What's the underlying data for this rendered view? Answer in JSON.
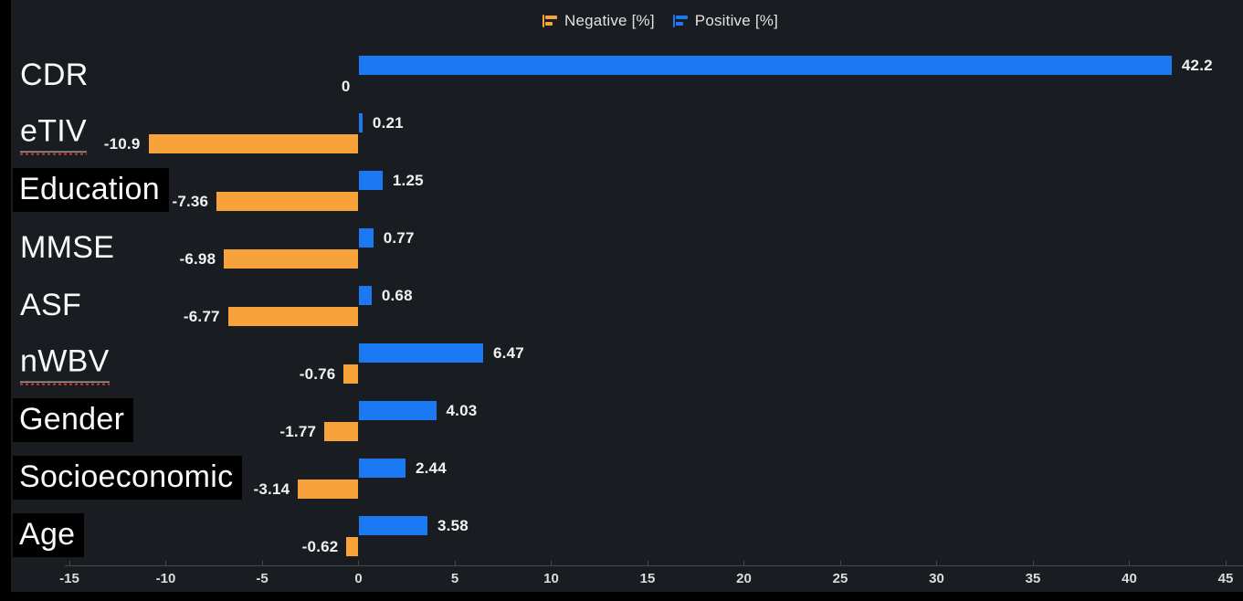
{
  "page": {
    "background": "#191c20",
    "frame_color": "#000000"
  },
  "legend": {
    "items": [
      {
        "label": "Negative [%]",
        "color": "#f7a23a"
      },
      {
        "label": "Positive [%]",
        "color": "#1b79f3"
      }
    ]
  },
  "chart_data": {
    "type": "bar",
    "orientation": "horizontal",
    "title": "",
    "xlabel": "",
    "ylabel": "",
    "categories": [
      "CDR",
      "eTIV",
      "Education",
      "MMSE",
      "ASF",
      "nWBV",
      "Gender",
      "Socioeconomic",
      "Age"
    ],
    "category_label_styles": [
      "plain",
      "underline",
      "blackbox",
      "plain",
      "plain",
      "underline",
      "blackbox",
      "blackbox",
      "blackbox"
    ],
    "series": [
      {
        "name": "Negative [%]",
        "color": "#f7a23a",
        "values": [
          0,
          -10.9,
          -7.36,
          -6.98,
          -6.77,
          -0.76,
          -1.77,
          -3.14,
          -0.62
        ],
        "value_labels": [
          "0",
          "-10.9",
          "-7.36",
          "-6.98",
          "-6.77",
          "-0.76",
          "-1.77",
          "-3.14",
          "-0.62"
        ]
      },
      {
        "name": "Positive [%]",
        "color": "#1b79f3",
        "values": [
          42.2,
          0.21,
          1.25,
          0.77,
          0.68,
          6.47,
          4.03,
          2.44,
          3.58
        ],
        "value_labels": [
          "42.2",
          "0.21",
          "1.25",
          "0.77",
          "0.68",
          "6.47",
          "4.03",
          "2.44",
          "3.58"
        ]
      }
    ],
    "x_ticks": [
      -15,
      -10,
      -5,
      0,
      5,
      10,
      15,
      20,
      25,
      30,
      35,
      40,
      45
    ],
    "xlim": [
      -15.2,
      45.9
    ],
    "grid": false,
    "legend_position": "top-center",
    "value_label_color": "#f2f2f2",
    "tick_label_color": "#dcdcdc",
    "axis_color": "#46494e"
  }
}
